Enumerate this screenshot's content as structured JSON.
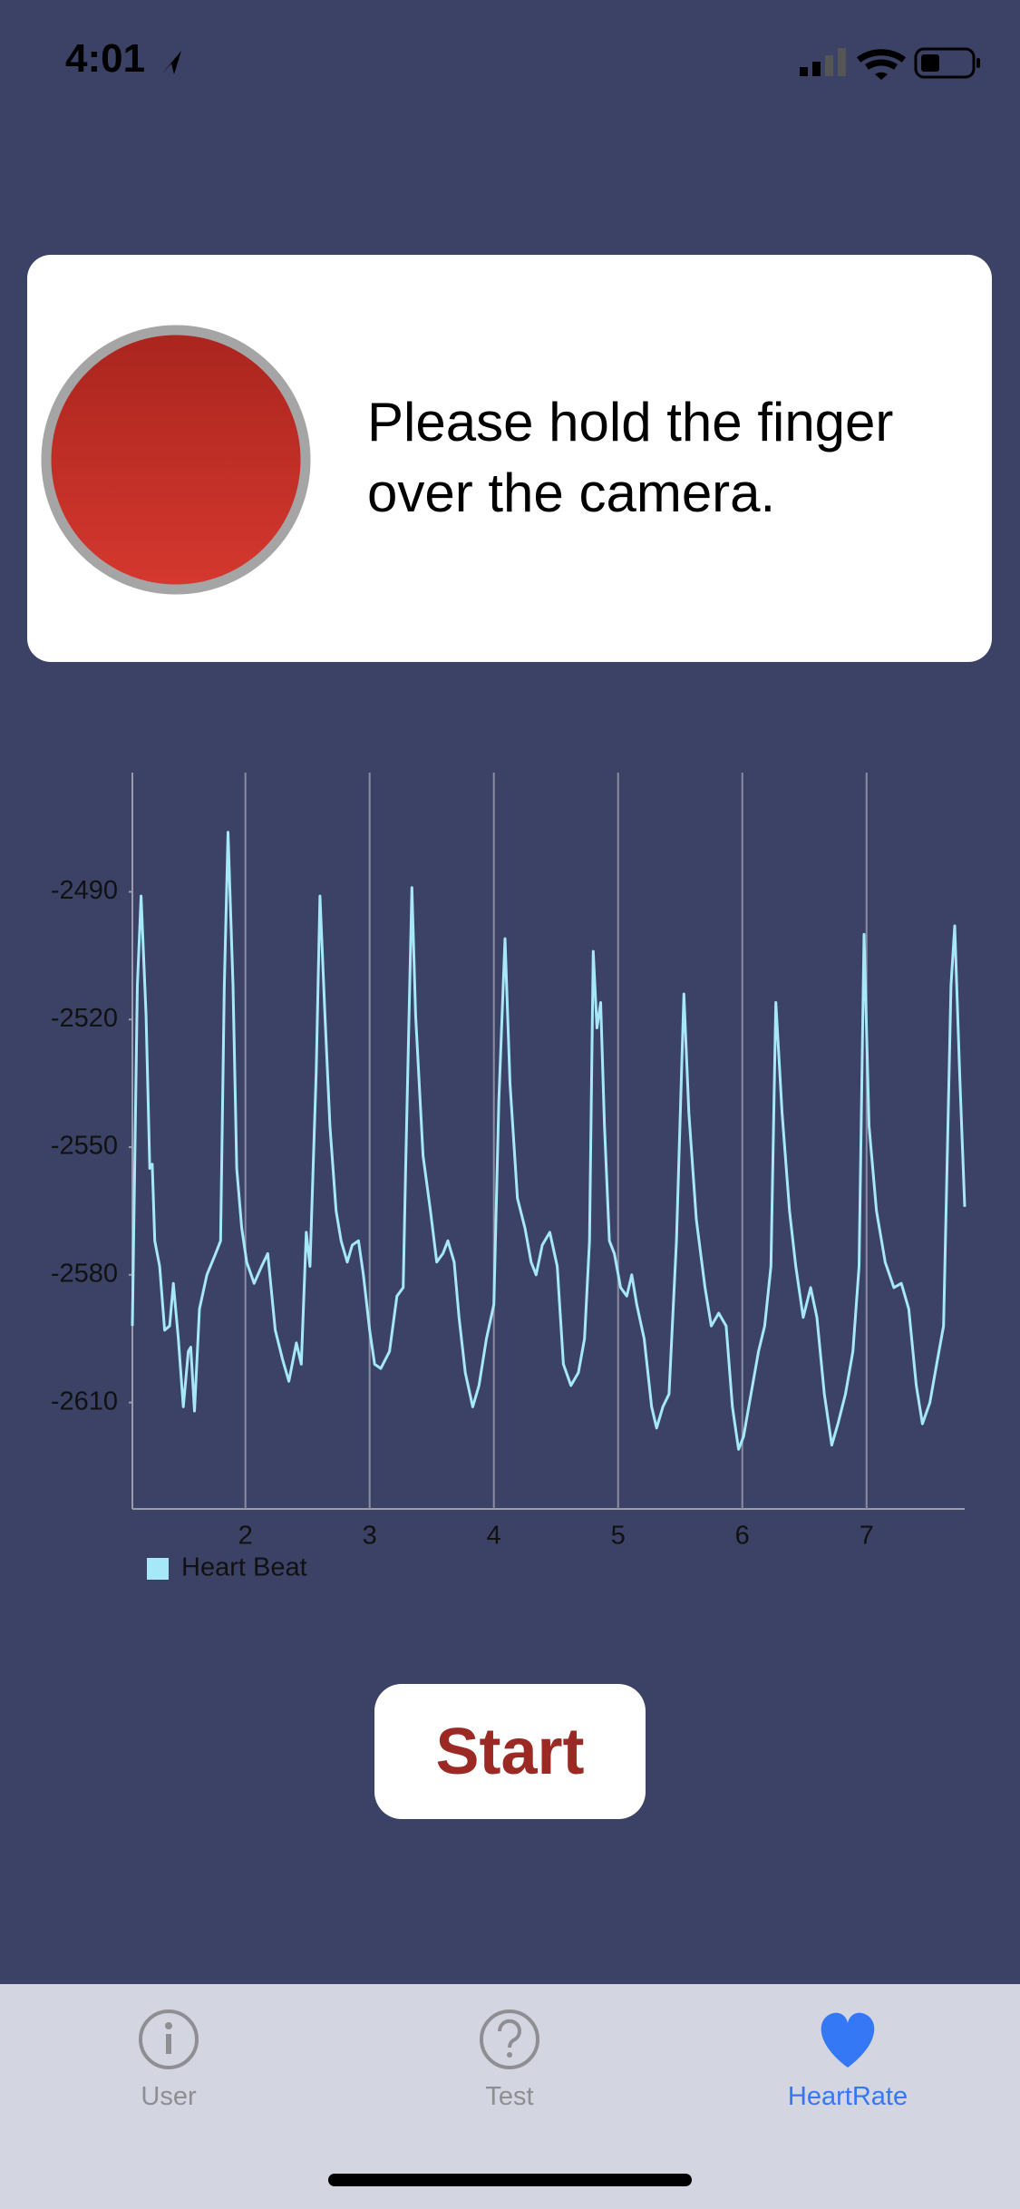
{
  "status_bar": {
    "time": "4:01"
  },
  "card": {
    "message_lines": [
      "Please hold the finger",
      "over the camera."
    ]
  },
  "chart_data": {
    "type": "line",
    "x": [
      1.09,
      1.13,
      1.16,
      1.2,
      1.23,
      1.25,
      1.27,
      1.31,
      1.35,
      1.39,
      1.42,
      1.46,
      1.5,
      1.54,
      1.56,
      1.59,
      1.63,
      1.69,
      1.76,
      1.8,
      1.83,
      1.86,
      1.9,
      1.93,
      1.97,
      2.01,
      2.07,
      2.13,
      2.18,
      2.24,
      2.3,
      2.35,
      2.41,
      2.45,
      2.49,
      2.52,
      2.57,
      2.6,
      2.64,
      2.68,
      2.73,
      2.77,
      2.82,
      2.86,
      2.91,
      2.95,
      3.0,
      3.04,
      3.09,
      3.16,
      3.22,
      3.27,
      3.29,
      3.34,
      3.37,
      3.43,
      3.49,
      3.54,
      3.59,
      3.63,
      3.68,
      3.72,
      3.77,
      3.83,
      3.88,
      3.94,
      4.0,
      4.04,
      4.09,
      4.13,
      4.19,
      4.25,
      4.3,
      4.34,
      4.39,
      4.45,
      4.51,
      4.56,
      4.62,
      4.68,
      4.73,
      4.77,
      4.8,
      4.83,
      4.86,
      4.89,
      4.93,
      4.97,
      5.02,
      5.07,
      5.11,
      5.15,
      5.21,
      5.27,
      5.31,
      5.36,
      5.41,
      5.47,
      5.53,
      5.57,
      5.63,
      5.7,
      5.75,
      5.81,
      5.87,
      5.92,
      5.97,
      6.01,
      6.07,
      6.13,
      6.18,
      6.23,
      6.27,
      6.32,
      6.38,
      6.43,
      6.49,
      6.55,
      6.6,
      6.66,
      6.72,
      6.77,
      6.83,
      6.89,
      6.94,
      6.98,
      7.02,
      7.08,
      7.15,
      7.22,
      7.28,
      7.34,
      7.4,
      7.45,
      7.51,
      7.57,
      7.62,
      7.68,
      7.71,
      7.75,
      7.79
    ],
    "series": [
      {
        "name": "Heart Beat",
        "color": "#a6e8f7",
        "values": [
          -2592,
          -2512,
          -2491,
          -2519,
          -2555,
          -2554,
          -2572,
          -2578,
          -2593,
          -2592,
          -2582,
          -2595,
          -2611,
          -2598,
          -2597,
          -2612,
          -2588,
          -2580,
          -2575,
          -2572,
          -2512,
          -2476,
          -2512,
          -2555,
          -2569,
          -2577,
          -2582,
          -2578,
          -2575,
          -2593,
          -2600,
          -2605,
          -2596,
          -2601,
          -2570,
          -2578,
          -2532,
          -2491,
          -2519,
          -2545,
          -2565,
          -2572,
          -2577,
          -2573,
          -2572,
          -2580,
          -2593,
          -2601,
          -2602,
          -2598,
          -2585,
          -2583,
          -2555,
          -2489,
          -2519,
          -2552,
          -2565,
          -2577,
          -2575,
          -2572,
          -2577,
          -2590,
          -2603,
          -2611,
          -2606,
          -2595,
          -2587,
          -2539,
          -2501,
          -2535,
          -2562,
          -2569,
          -2577,
          -2580,
          -2573,
          -2570,
          -2578,
          -2601,
          -2606,
          -2603,
          -2595,
          -2572,
          -2504,
          -2522,
          -2516,
          -2545,
          -2572,
          -2575,
          -2583,
          -2585,
          -2580,
          -2587,
          -2595,
          -2611,
          -2616,
          -2611,
          -2608,
          -2572,
          -2514,
          -2542,
          -2567,
          -2583,
          -2592,
          -2589,
          -2592,
          -2611,
          -2621,
          -2618,
          -2608,
          -2598,
          -2592,
          -2578,
          -2516,
          -2542,
          -2565,
          -2578,
          -2590,
          -2583,
          -2590,
          -2608,
          -2620,
          -2615,
          -2608,
          -2598,
          -2578,
          -2500,
          -2545,
          -2565,
          -2577,
          -2583,
          -2582,
          -2588,
          -2606,
          -2615,
          -2610,
          -2600,
          -2592,
          -2512,
          -2498,
          -2533,
          -2564
        ]
      }
    ],
    "xlim": [
      1.09,
      7.79
    ],
    "ylim": [
      -2635,
      -2462
    ],
    "xticks": [
      2,
      3,
      4,
      5,
      6,
      7
    ],
    "yticks": [
      -2490,
      -2520,
      -2550,
      -2580,
      -2610
    ],
    "grid": true,
    "legend": "bottom-left"
  },
  "button": {
    "label": "Start"
  },
  "tabs": [
    {
      "label": "User",
      "selected": false
    },
    {
      "label": "Test",
      "selected": false
    },
    {
      "label": "HeartRate",
      "selected": true
    }
  ]
}
